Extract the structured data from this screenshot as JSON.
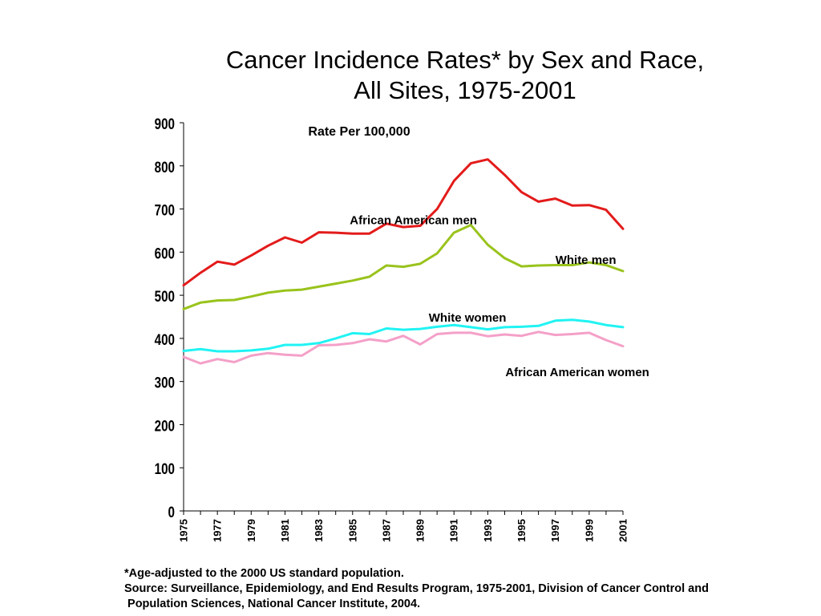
{
  "title": {
    "line1": "Cancer Incidence Rates* by Sex and Race,",
    "line2": "All Sites, 1975-2001"
  },
  "footnote": {
    "line1": "*Age-adjusted to the 2000 US standard population.",
    "line2": "Source: Surveillance, Epidemiology, and End Results Program, 1975-2001, Division of Cancer Control and",
    "line3": " Population Sciences, National Cancer Institute, 2004."
  },
  "chart_data": {
    "type": "line",
    "title": "Cancer Incidence Rates* by Sex and Race, All Sites, 1975-2001",
    "ylabel": "Rate Per 100,000",
    "xlabel": "",
    "ylim": [
      0,
      900
    ],
    "xlim": [
      1975,
      2001
    ],
    "yticks": [
      0,
      100,
      200,
      300,
      400,
      500,
      600,
      700,
      800,
      900
    ],
    "xticks": [
      1975,
      1977,
      1979,
      1981,
      1983,
      1985,
      1987,
      1989,
      1991,
      1993,
      1995,
      1997,
      1999,
      2001
    ],
    "grid": false,
    "x": [
      1975,
      1976,
      1977,
      1978,
      1979,
      1980,
      1981,
      1982,
      1983,
      1984,
      1985,
      1986,
      1987,
      1988,
      1989,
      1990,
      1991,
      1992,
      1993,
      1994,
      1995,
      1996,
      1997,
      1998,
      1999,
      2000,
      2001
    ],
    "series": [
      {
        "name": "African American men",
        "color": "#e31b1b",
        "values": [
          523,
          552,
          578,
          571,
          592,
          615,
          634,
          622,
          646,
          645,
          643,
          643,
          666,
          658,
          661,
          700,
          765,
          806,
          815,
          779,
          739,
          717,
          724,
          708,
          709,
          698,
          654
        ]
      },
      {
        "name": "White men",
        "color": "#99c31c",
        "values": [
          468,
          483,
          488,
          489,
          497,
          506,
          511,
          513,
          520,
          527,
          534,
          543,
          569,
          566,
          573,
          597,
          645,
          663,
          617,
          586,
          567,
          569,
          570,
          570,
          576,
          570,
          556
        ]
      },
      {
        "name": "White women",
        "color": "#21f3f3",
        "values": [
          371,
          375,
          370,
          370,
          372,
          376,
          385,
          385,
          389,
          400,
          412,
          410,
          423,
          420,
          422,
          427,
          431,
          426,
          421,
          426,
          427,
          429,
          441,
          443,
          439,
          431,
          426
        ]
      },
      {
        "name": "African American women",
        "color": "#f4a0c8",
        "values": [
          357,
          342,
          352,
          345,
          360,
          366,
          362,
          360,
          384,
          385,
          389,
          398,
          393,
          406,
          386,
          410,
          413,
          413,
          405,
          409,
          406,
          415,
          408,
          410,
          413,
          396,
          382
        ]
      }
    ],
    "annotations": [
      {
        "text": "African American men",
        "x": 1988.6,
        "y": 676
      },
      {
        "text": "White men",
        "x": 1998.8,
        "y": 584
      },
      {
        "text": "White women",
        "x": 1991.8,
        "y": 450
      },
      {
        "text": "African American women",
        "x": 1998.3,
        "y": 324
      }
    ]
  }
}
